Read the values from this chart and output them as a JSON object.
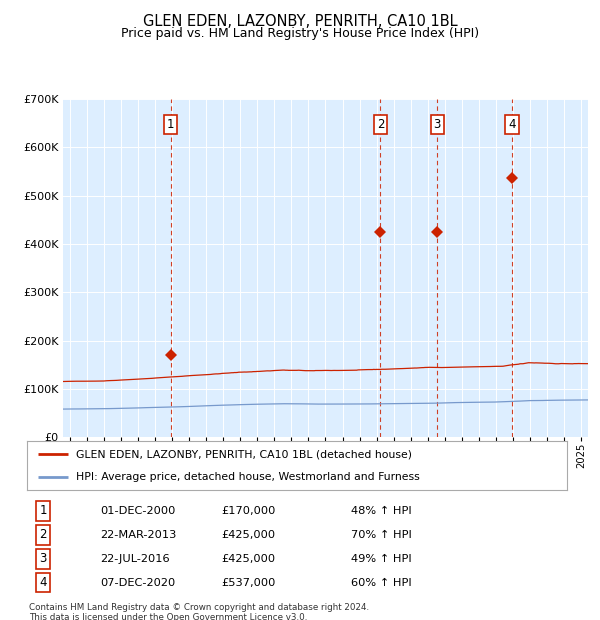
{
  "title": "GLEN EDEN, LAZONBY, PENRITH, CA10 1BL",
  "subtitle": "Price paid vs. HM Land Registry's House Price Index (HPI)",
  "legend_line1": "GLEN EDEN, LAZONBY, PENRITH, CA10 1BL (detached house)",
  "legend_line2": "HPI: Average price, detached house, Westmorland and Furness",
  "red_color": "#cc2200",
  "blue_color": "#7799cc",
  "background_color": "#ddeeff",
  "sale_markers": [
    {
      "num": 1,
      "price": 170000,
      "x_approx": 2000.92
    },
    {
      "num": 2,
      "price": 425000,
      "x_approx": 2013.22
    },
    {
      "num": 3,
      "price": 425000,
      "x_approx": 2016.56
    },
    {
      "num": 4,
      "price": 537000,
      "x_approx": 2020.93
    }
  ],
  "table_rows": [
    [
      "1",
      "01-DEC-2000",
      "£170,000",
      "48% ↑ HPI"
    ],
    [
      "2",
      "22-MAR-2013",
      "£425,000",
      "70% ↑ HPI"
    ],
    [
      "3",
      "22-JUL-2016",
      "£425,000",
      "49% ↑ HPI"
    ],
    [
      "4",
      "07-DEC-2020",
      "£537,000",
      "60% ↑ HPI"
    ]
  ],
  "footer": "Contains HM Land Registry data © Crown copyright and database right 2024.\nThis data is licensed under the Open Government Licence v3.0.",
  "ylim": [
    0,
    700000
  ],
  "xlim_start": 1994.6,
  "xlim_end": 2025.4
}
